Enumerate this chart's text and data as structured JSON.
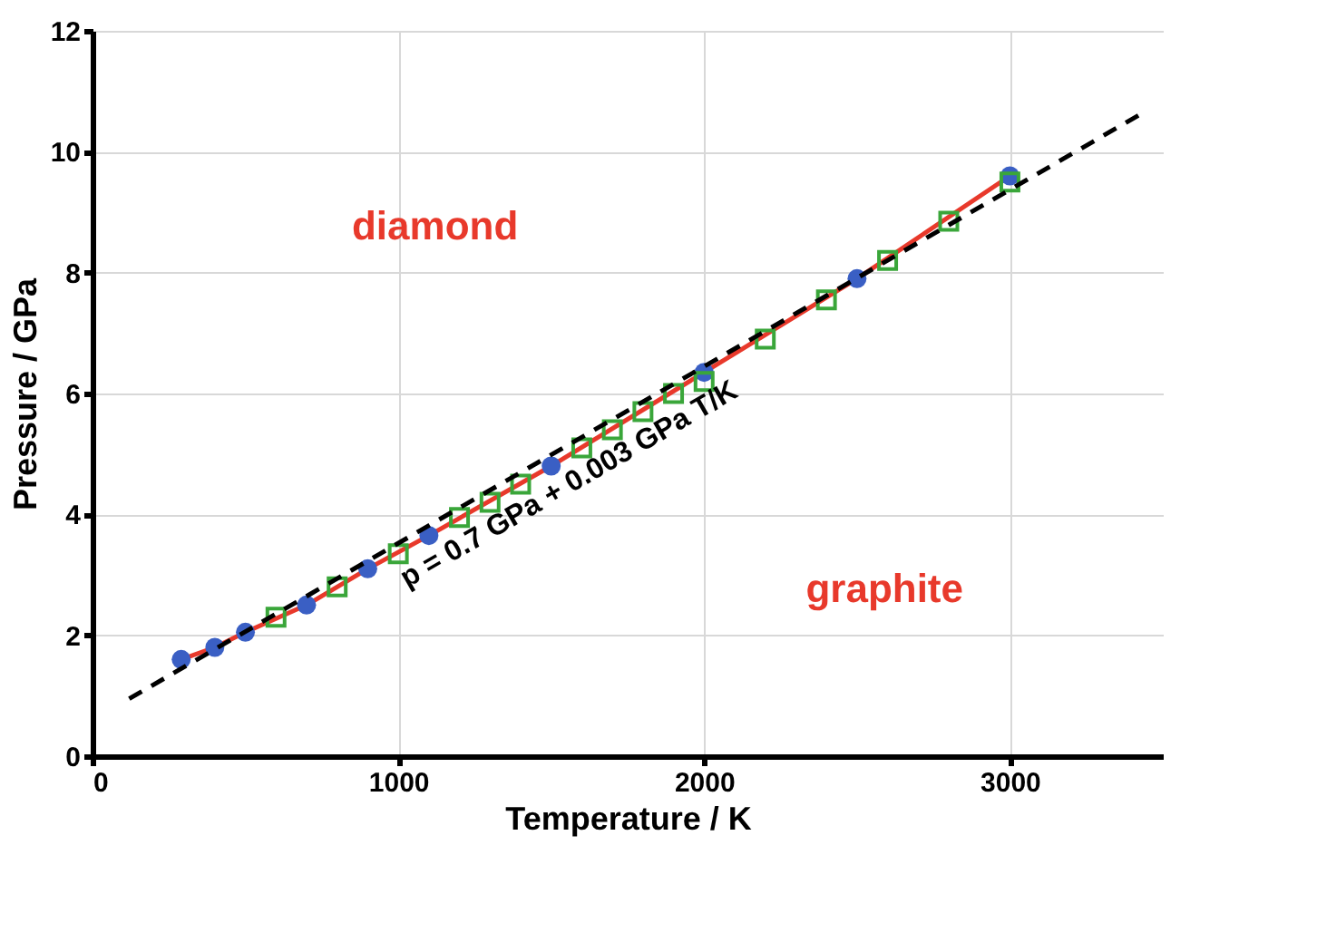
{
  "chart_data": {
    "type": "scatter",
    "xlabel": "Temperature / K",
    "ylabel": "Pressure / GPa",
    "xlim": [
      0,
      3500
    ],
    "ylim": [
      0,
      12
    ],
    "xticks": [
      0,
      1000,
      2000,
      3000
    ],
    "yticks": [
      0,
      2,
      4,
      6,
      8,
      10,
      12
    ],
    "grid": true,
    "series": [
      {
        "type": "line",
        "color": "#e8392b",
        "line_style": "solid",
        "marker": "none",
        "x": [
          290,
          400,
          500,
          700,
          900,
          1100,
          1500,
          2000,
          2500,
          3000
        ],
        "values": [
          1.6,
          1.8,
          2.05,
          2.5,
          3.1,
          3.65,
          4.8,
          6.35,
          7.9,
          9.6
        ]
      },
      {
        "color": "#3a5fc4",
        "marker": "circle",
        "x": [
          290,
          400,
          500,
          700,
          900,
          1100,
          1500,
          2000,
          2500,
          3000
        ],
        "values": [
          1.6,
          1.8,
          2.05,
          2.5,
          3.1,
          3.65,
          4.8,
          6.35,
          7.9,
          9.6
        ]
      },
      {
        "color": "#3aa63a",
        "marker": "square",
        "x": [
          600,
          800,
          1000,
          1200,
          1300,
          1400,
          1600,
          1700,
          1800,
          1900,
          2000,
          2200,
          2400,
          2600,
          2800,
          3000
        ],
        "values": [
          2.3,
          2.8,
          3.35,
          3.95,
          4.2,
          4.5,
          5.1,
          5.4,
          5.7,
          6.0,
          6.2,
          6.9,
          7.55,
          8.2,
          8.85,
          9.5
        ]
      },
      {
        "type": "line",
        "color": "#000000",
        "line_style": "dashed",
        "marker": "none",
        "x": [
          120,
          3420
        ],
        "values": [
          0.95,
          10.6
        ]
      }
    ],
    "annotations": [
      "diamond",
      "graphite",
      "p = 0.7 GPa + 0.003 GPa T/K"
    ]
  }
}
